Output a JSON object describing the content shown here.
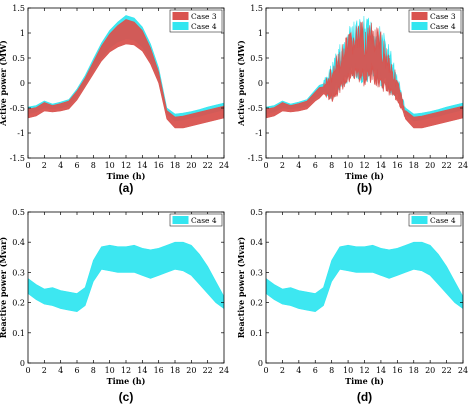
{
  "chart_data": [
    {
      "panel": "(a)",
      "type": "area",
      "xlabel": "Time (h)",
      "ylabel": "Active power (MW)",
      "xlim": [
        0,
        24
      ],
      "ylim": [
        -1.5,
        1.5
      ],
      "xticks": [
        "0",
        "2",
        "4",
        "6",
        "8",
        "10",
        "12",
        "14",
        "16",
        "18",
        "20",
        "22",
        "24"
      ],
      "yticks": [
        "-1.5",
        "-1",
        "-0.5",
        "0",
        "0.5",
        "1",
        "1.5"
      ],
      "legend_position": "top-right",
      "x": [
        0,
        1,
        2,
        3,
        4,
        5,
        6,
        7,
        8,
        9,
        10,
        11,
        12,
        13,
        14,
        15,
        16,
        17,
        18,
        19,
        20,
        21,
        22,
        23,
        24
      ],
      "series": [
        {
          "name": "Case 4",
          "color": "#33e6f0",
          "upper": [
            -0.48,
            -0.45,
            -0.36,
            -0.42,
            -0.38,
            -0.33,
            -0.12,
            0.15,
            0.48,
            0.8,
            1.05,
            1.22,
            1.35,
            1.3,
            1.12,
            0.78,
            0.3,
            -0.5,
            -0.62,
            -0.6,
            -0.57,
            -0.53,
            -0.48,
            -0.44,
            -0.4
          ],
          "lower": [
            -0.62,
            -0.58,
            -0.5,
            -0.52,
            -0.5,
            -0.46,
            -0.28,
            -0.02,
            0.25,
            0.5,
            0.7,
            0.82,
            0.88,
            0.86,
            0.72,
            0.45,
            0.08,
            -0.62,
            -0.76,
            -0.74,
            -0.7,
            -0.67,
            -0.62,
            -0.58,
            -0.54
          ]
        },
        {
          "name": "Case 3",
          "color": "#d9534f",
          "upper": [
            -0.52,
            -0.49,
            -0.39,
            -0.45,
            -0.41,
            -0.36,
            -0.16,
            0.1,
            0.42,
            0.74,
            0.98,
            1.15,
            1.27,
            1.22,
            1.05,
            0.7,
            0.22,
            -0.55,
            -0.68,
            -0.66,
            -0.62,
            -0.58,
            -0.54,
            -0.5,
            -0.46
          ],
          "lower": [
            -0.7,
            -0.66,
            -0.56,
            -0.58,
            -0.56,
            -0.52,
            -0.34,
            -0.08,
            0.18,
            0.44,
            0.62,
            0.72,
            0.78,
            0.76,
            0.64,
            0.38,
            0.0,
            -0.72,
            -0.9,
            -0.9,
            -0.86,
            -0.82,
            -0.78,
            -0.74,
            -0.7
          ]
        }
      ]
    },
    {
      "panel": "(b)",
      "type": "area",
      "xlabel": "Time (h)",
      "ylabel": "Active power (MW)",
      "xlim": [
        0,
        24
      ],
      "ylim": [
        -1.5,
        1.5
      ],
      "xticks": [
        "0",
        "2",
        "4",
        "6",
        "8",
        "10",
        "12",
        "14",
        "16",
        "18",
        "20",
        "22",
        "24"
      ],
      "yticks": [
        "-1.5",
        "-1",
        "-0.5",
        "0",
        "0.5",
        "1",
        "1.5"
      ],
      "legend_position": "top-right",
      "x": [
        0,
        1,
        2,
        3,
        4,
        5,
        6,
        7,
        8,
        9,
        10,
        11,
        12,
        13,
        14,
        15,
        16,
        17,
        18,
        19,
        20,
        21,
        22,
        23,
        24
      ],
      "series": [
        {
          "name": "Case 4",
          "color": "#33e6f0",
          "upper": [
            -0.48,
            -0.45,
            -0.36,
            -0.42,
            -0.38,
            -0.33,
            -0.14,
            0.05,
            0.45,
            0.8,
            1.1,
            1.3,
            1.35,
            1.3,
            1.15,
            0.8,
            0.2,
            -0.5,
            -0.62,
            -0.6,
            -0.57,
            -0.53,
            -0.48,
            -0.44,
            -0.4
          ],
          "lower": [
            -0.62,
            -0.58,
            -0.5,
            -0.52,
            -0.5,
            -0.46,
            -0.3,
            -0.2,
            -0.35,
            -0.15,
            0.0,
            0.1,
            -0.05,
            0.05,
            -0.1,
            -0.2,
            -0.3,
            -0.62,
            -0.76,
            -0.74,
            -0.7,
            -0.67,
            -0.62,
            -0.58,
            -0.54
          ]
        },
        {
          "name": "Case 3",
          "color": "#d9534f",
          "upper": [
            -0.52,
            -0.49,
            -0.39,
            -0.45,
            -0.41,
            -0.36,
            -0.18,
            0.0,
            0.35,
            0.7,
            1.0,
            1.2,
            1.25,
            1.2,
            1.05,
            0.7,
            0.12,
            -0.55,
            -0.68,
            -0.66,
            -0.62,
            -0.58,
            -0.54,
            -0.5,
            -0.46
          ],
          "lower": [
            -0.7,
            -0.66,
            -0.56,
            -0.58,
            -0.56,
            -0.52,
            -0.36,
            -0.25,
            -0.4,
            -0.2,
            -0.05,
            0.05,
            -0.1,
            0.0,
            -0.15,
            -0.25,
            -0.38,
            -0.72,
            -0.9,
            -0.9,
            -0.86,
            -0.82,
            -0.78,
            -0.74,
            -0.7
          ]
        }
      ]
    },
    {
      "panel": "(c)",
      "type": "area",
      "xlabel": "Time (h)",
      "ylabel": "Reactive power (Mvar)",
      "xlim": [
        0,
        24
      ],
      "ylim": [
        0,
        0.5
      ],
      "xticks": [
        "0",
        "2",
        "4",
        "6",
        "8",
        "10",
        "12",
        "14",
        "16",
        "18",
        "20",
        "22",
        "24"
      ],
      "yticks": [
        "0",
        "0.1",
        "0.2",
        "0.3",
        "0.4",
        "0.5"
      ],
      "legend_position": "top-right",
      "x": [
        0,
        1,
        2,
        3,
        4,
        5,
        6,
        7,
        8,
        9,
        10,
        11,
        12,
        13,
        14,
        15,
        16,
        17,
        18,
        19,
        20,
        21,
        22,
        23,
        24
      ],
      "series": [
        {
          "name": "Case 4",
          "color": "#33e6f0",
          "upper": [
            0.28,
            0.26,
            0.245,
            0.25,
            0.24,
            0.235,
            0.23,
            0.25,
            0.34,
            0.385,
            0.39,
            0.385,
            0.385,
            0.39,
            0.38,
            0.375,
            0.38,
            0.39,
            0.4,
            0.4,
            0.39,
            0.36,
            0.32,
            0.27,
            0.22
          ],
          "lower": [
            0.23,
            0.21,
            0.195,
            0.19,
            0.18,
            0.175,
            0.17,
            0.19,
            0.27,
            0.31,
            0.305,
            0.3,
            0.3,
            0.3,
            0.29,
            0.28,
            0.29,
            0.3,
            0.31,
            0.305,
            0.29,
            0.26,
            0.23,
            0.2,
            0.18
          ]
        }
      ]
    },
    {
      "panel": "(d)",
      "type": "area",
      "xlabel": "Time (h)",
      "ylabel": "Reactive power (Mvar)",
      "xlim": [
        0,
        24
      ],
      "ylim": [
        0,
        0.5
      ],
      "xticks": [
        "0",
        "2",
        "4",
        "6",
        "8",
        "10",
        "12",
        "14",
        "16",
        "18",
        "20",
        "22",
        "24"
      ],
      "yticks": [
        "0",
        "0.1",
        "0.2",
        "0.3",
        "0.4",
        "0.5"
      ],
      "legend_position": "top-right",
      "x": [
        0,
        1,
        2,
        3,
        4,
        5,
        6,
        7,
        8,
        9,
        10,
        11,
        12,
        13,
        14,
        15,
        16,
        17,
        18,
        19,
        20,
        21,
        22,
        23,
        24
      ],
      "series": [
        {
          "name": "Case 4",
          "color": "#33e6f0",
          "upper": [
            0.28,
            0.26,
            0.245,
            0.25,
            0.24,
            0.235,
            0.23,
            0.25,
            0.34,
            0.385,
            0.39,
            0.385,
            0.385,
            0.39,
            0.38,
            0.375,
            0.38,
            0.39,
            0.4,
            0.4,
            0.39,
            0.36,
            0.32,
            0.27,
            0.22
          ],
          "lower": [
            0.23,
            0.21,
            0.195,
            0.19,
            0.18,
            0.175,
            0.17,
            0.19,
            0.27,
            0.31,
            0.305,
            0.3,
            0.3,
            0.3,
            0.29,
            0.28,
            0.29,
            0.3,
            0.31,
            0.305,
            0.29,
            0.26,
            0.23,
            0.2,
            0.18
          ]
        }
      ]
    }
  ]
}
